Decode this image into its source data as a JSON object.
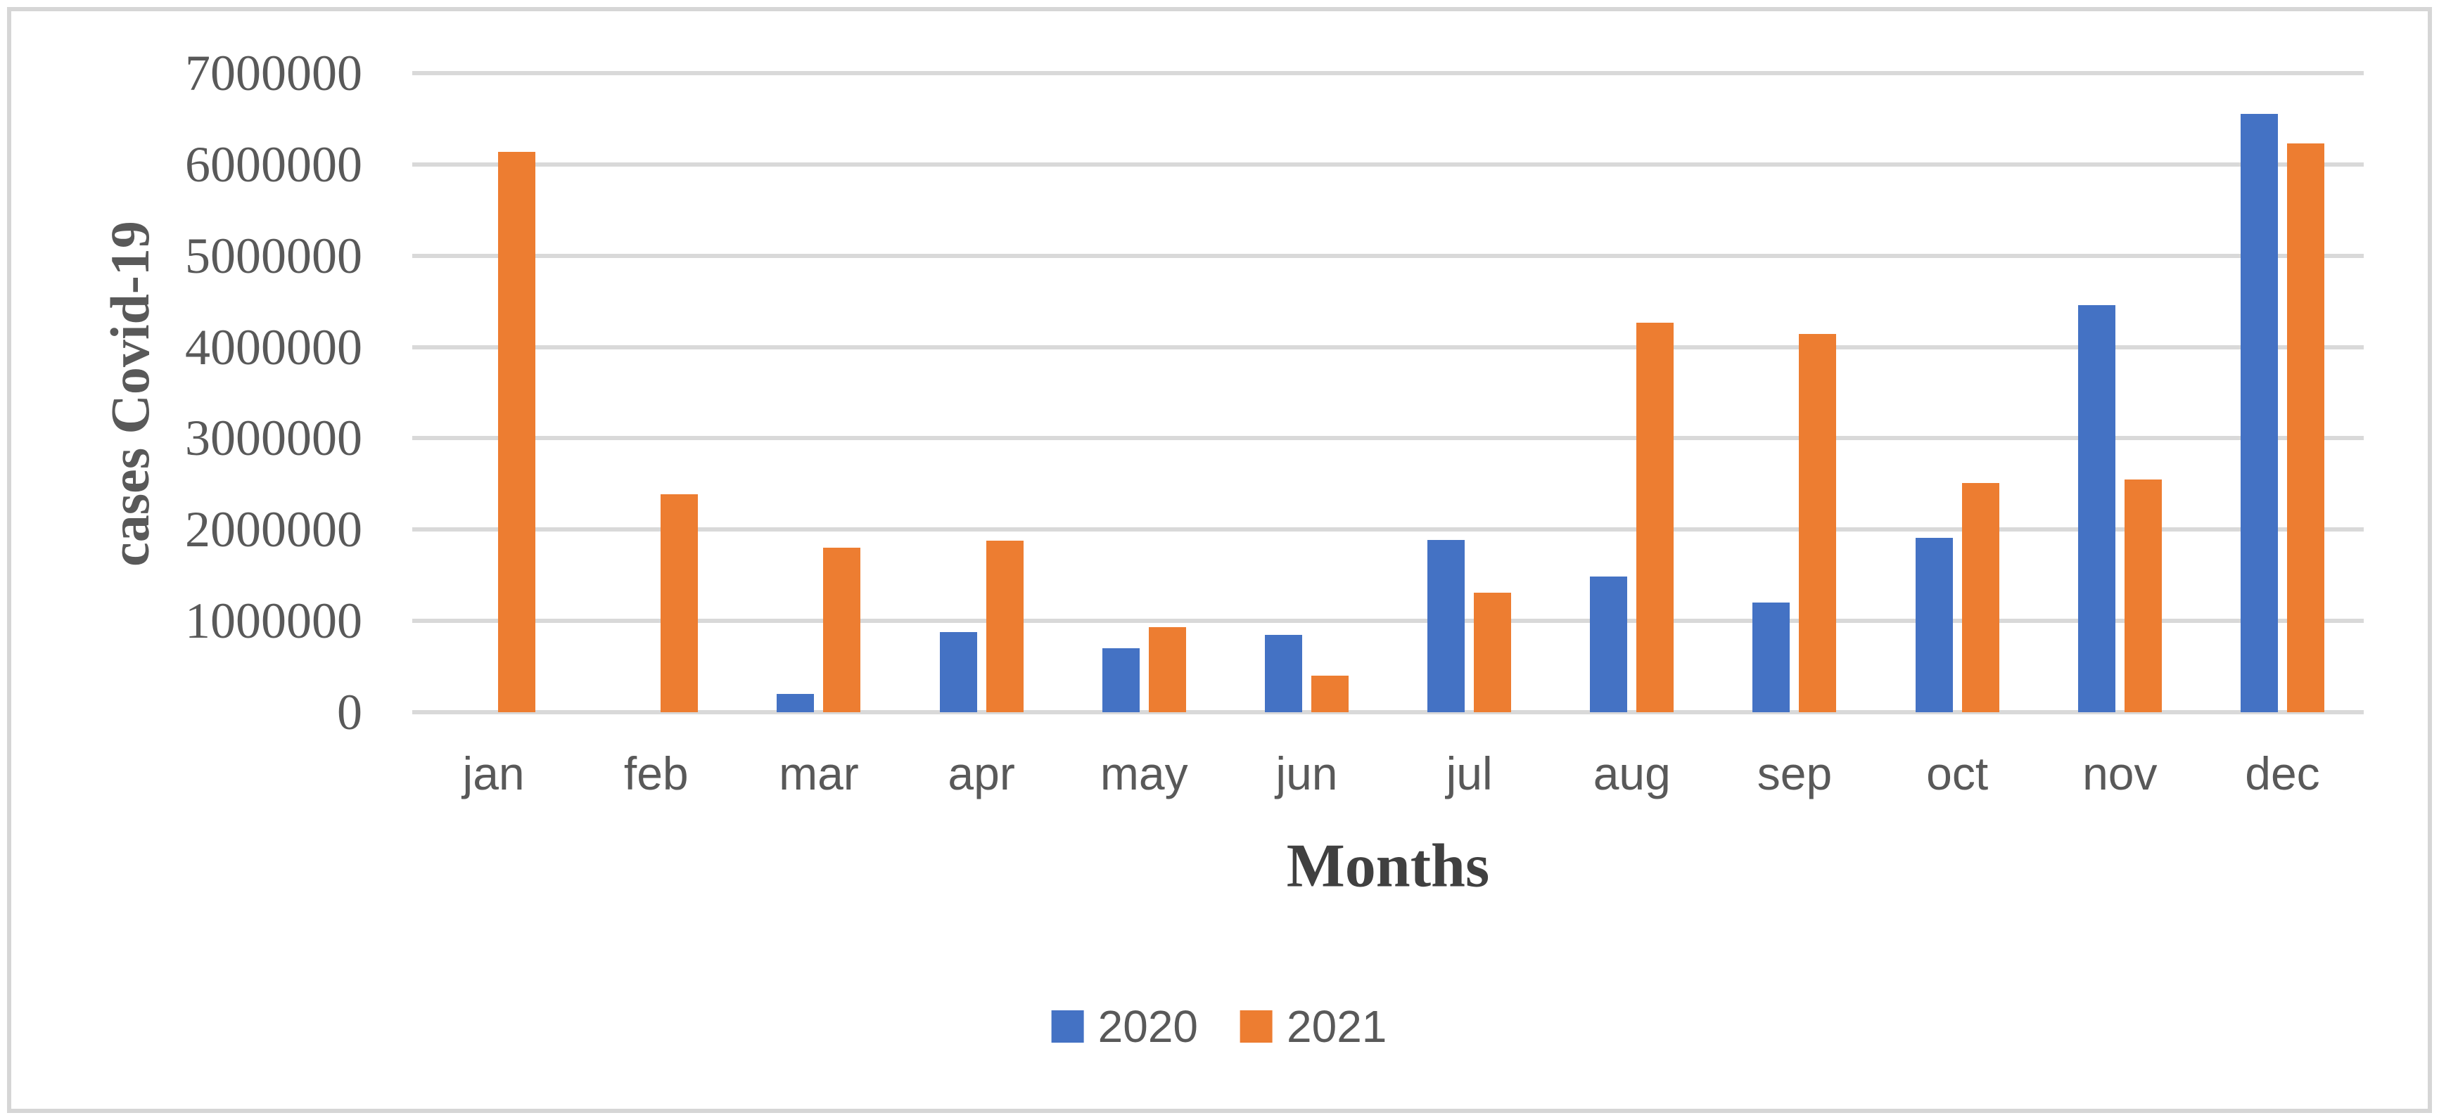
{
  "chart_data": {
    "type": "bar",
    "title": "",
    "categories": [
      "jan",
      "feb",
      "mar",
      "apr",
      "may",
      "jun",
      "jul",
      "aug",
      "sep",
      "oct",
      "nov",
      "dec"
    ],
    "series": [
      {
        "name": "2020",
        "color": "#4472C4",
        "values": [
          0,
          0,
          200000,
          880000,
          700000,
          850000,
          1890000,
          1490000,
          1200000,
          1910000,
          4460000,
          6550000
        ]
      },
      {
        "name": "2021",
        "color": "#ED7D31",
        "values": [
          6140000,
          2390000,
          1800000,
          1880000,
          930000,
          400000,
          1310000,
          4270000,
          4140000,
          2510000,
          2550000,
          6230000
        ]
      }
    ],
    "xlabel": "Months",
    "ylabel": "cases Covid-19",
    "ylim": [
      0,
      7000000
    ],
    "ytick_step": 1000000,
    "ytick_labels": [
      "0",
      "1000000",
      "2000000",
      "3000000",
      "4000000",
      "5000000",
      "6000000",
      "7000000"
    ],
    "grid": true,
    "legend_position": "bottom"
  },
  "colors": {
    "background": "#FFFFFF",
    "frame_border": "#D6D6D6",
    "gridline": "#D9D9D9",
    "axis_text": "#595959",
    "series_2020": "#4472C4",
    "series_2021": "#ED7D31"
  }
}
